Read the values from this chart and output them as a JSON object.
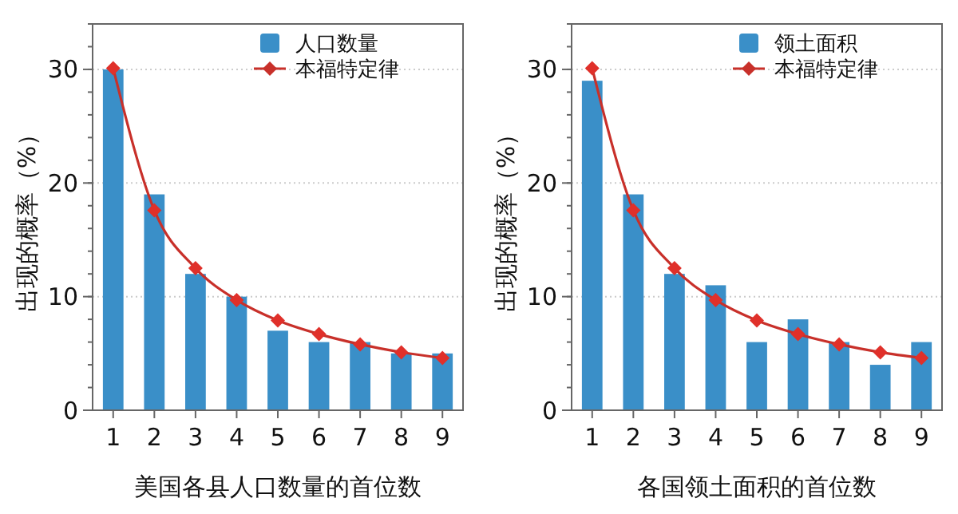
{
  "chart_data": [
    {
      "type": "bar",
      "xlabel": "美国各县人口数量的首位数",
      "ylabel": "出现的概率（%）",
      "categories": [
        "1",
        "2",
        "3",
        "4",
        "5",
        "6",
        "7",
        "8",
        "9"
      ],
      "ylim": [
        0,
        34
      ],
      "yticks": [
        0,
        10,
        20,
        30
      ],
      "grid": "y",
      "legend": "top right",
      "series": [
        {
          "name": "人口数量",
          "color": "#3a8fc8",
          "values": [
            30,
            19,
            12,
            10,
            7,
            6,
            6,
            5,
            5
          ]
        },
        {
          "name": "本福特定律",
          "type": "line",
          "color": "#c8302a",
          "marker": "diamond",
          "values": [
            30.1,
            17.6,
            12.5,
            9.7,
            7.9,
            6.7,
            5.8,
            5.1,
            4.6
          ]
        }
      ]
    },
    {
      "type": "bar",
      "xlabel": "各国领土面积的首位数",
      "ylabel": "出现的概率（%）",
      "categories": [
        "1",
        "2",
        "3",
        "4",
        "5",
        "6",
        "7",
        "8",
        "9"
      ],
      "ylim": [
        0,
        34
      ],
      "yticks": [
        0,
        10,
        20,
        30
      ],
      "grid": "y",
      "legend": "top right",
      "series": [
        {
          "name": "领土面积",
          "color": "#3a8fc8",
          "values": [
            29,
            19,
            12,
            11,
            6,
            8,
            6,
            4,
            6
          ]
        },
        {
          "name": "本福特定律",
          "type": "line",
          "color": "#c8302a",
          "marker": "diamond",
          "values": [
            30.1,
            17.6,
            12.5,
            9.7,
            7.9,
            6.7,
            5.8,
            5.1,
            4.6
          ]
        }
      ]
    }
  ]
}
